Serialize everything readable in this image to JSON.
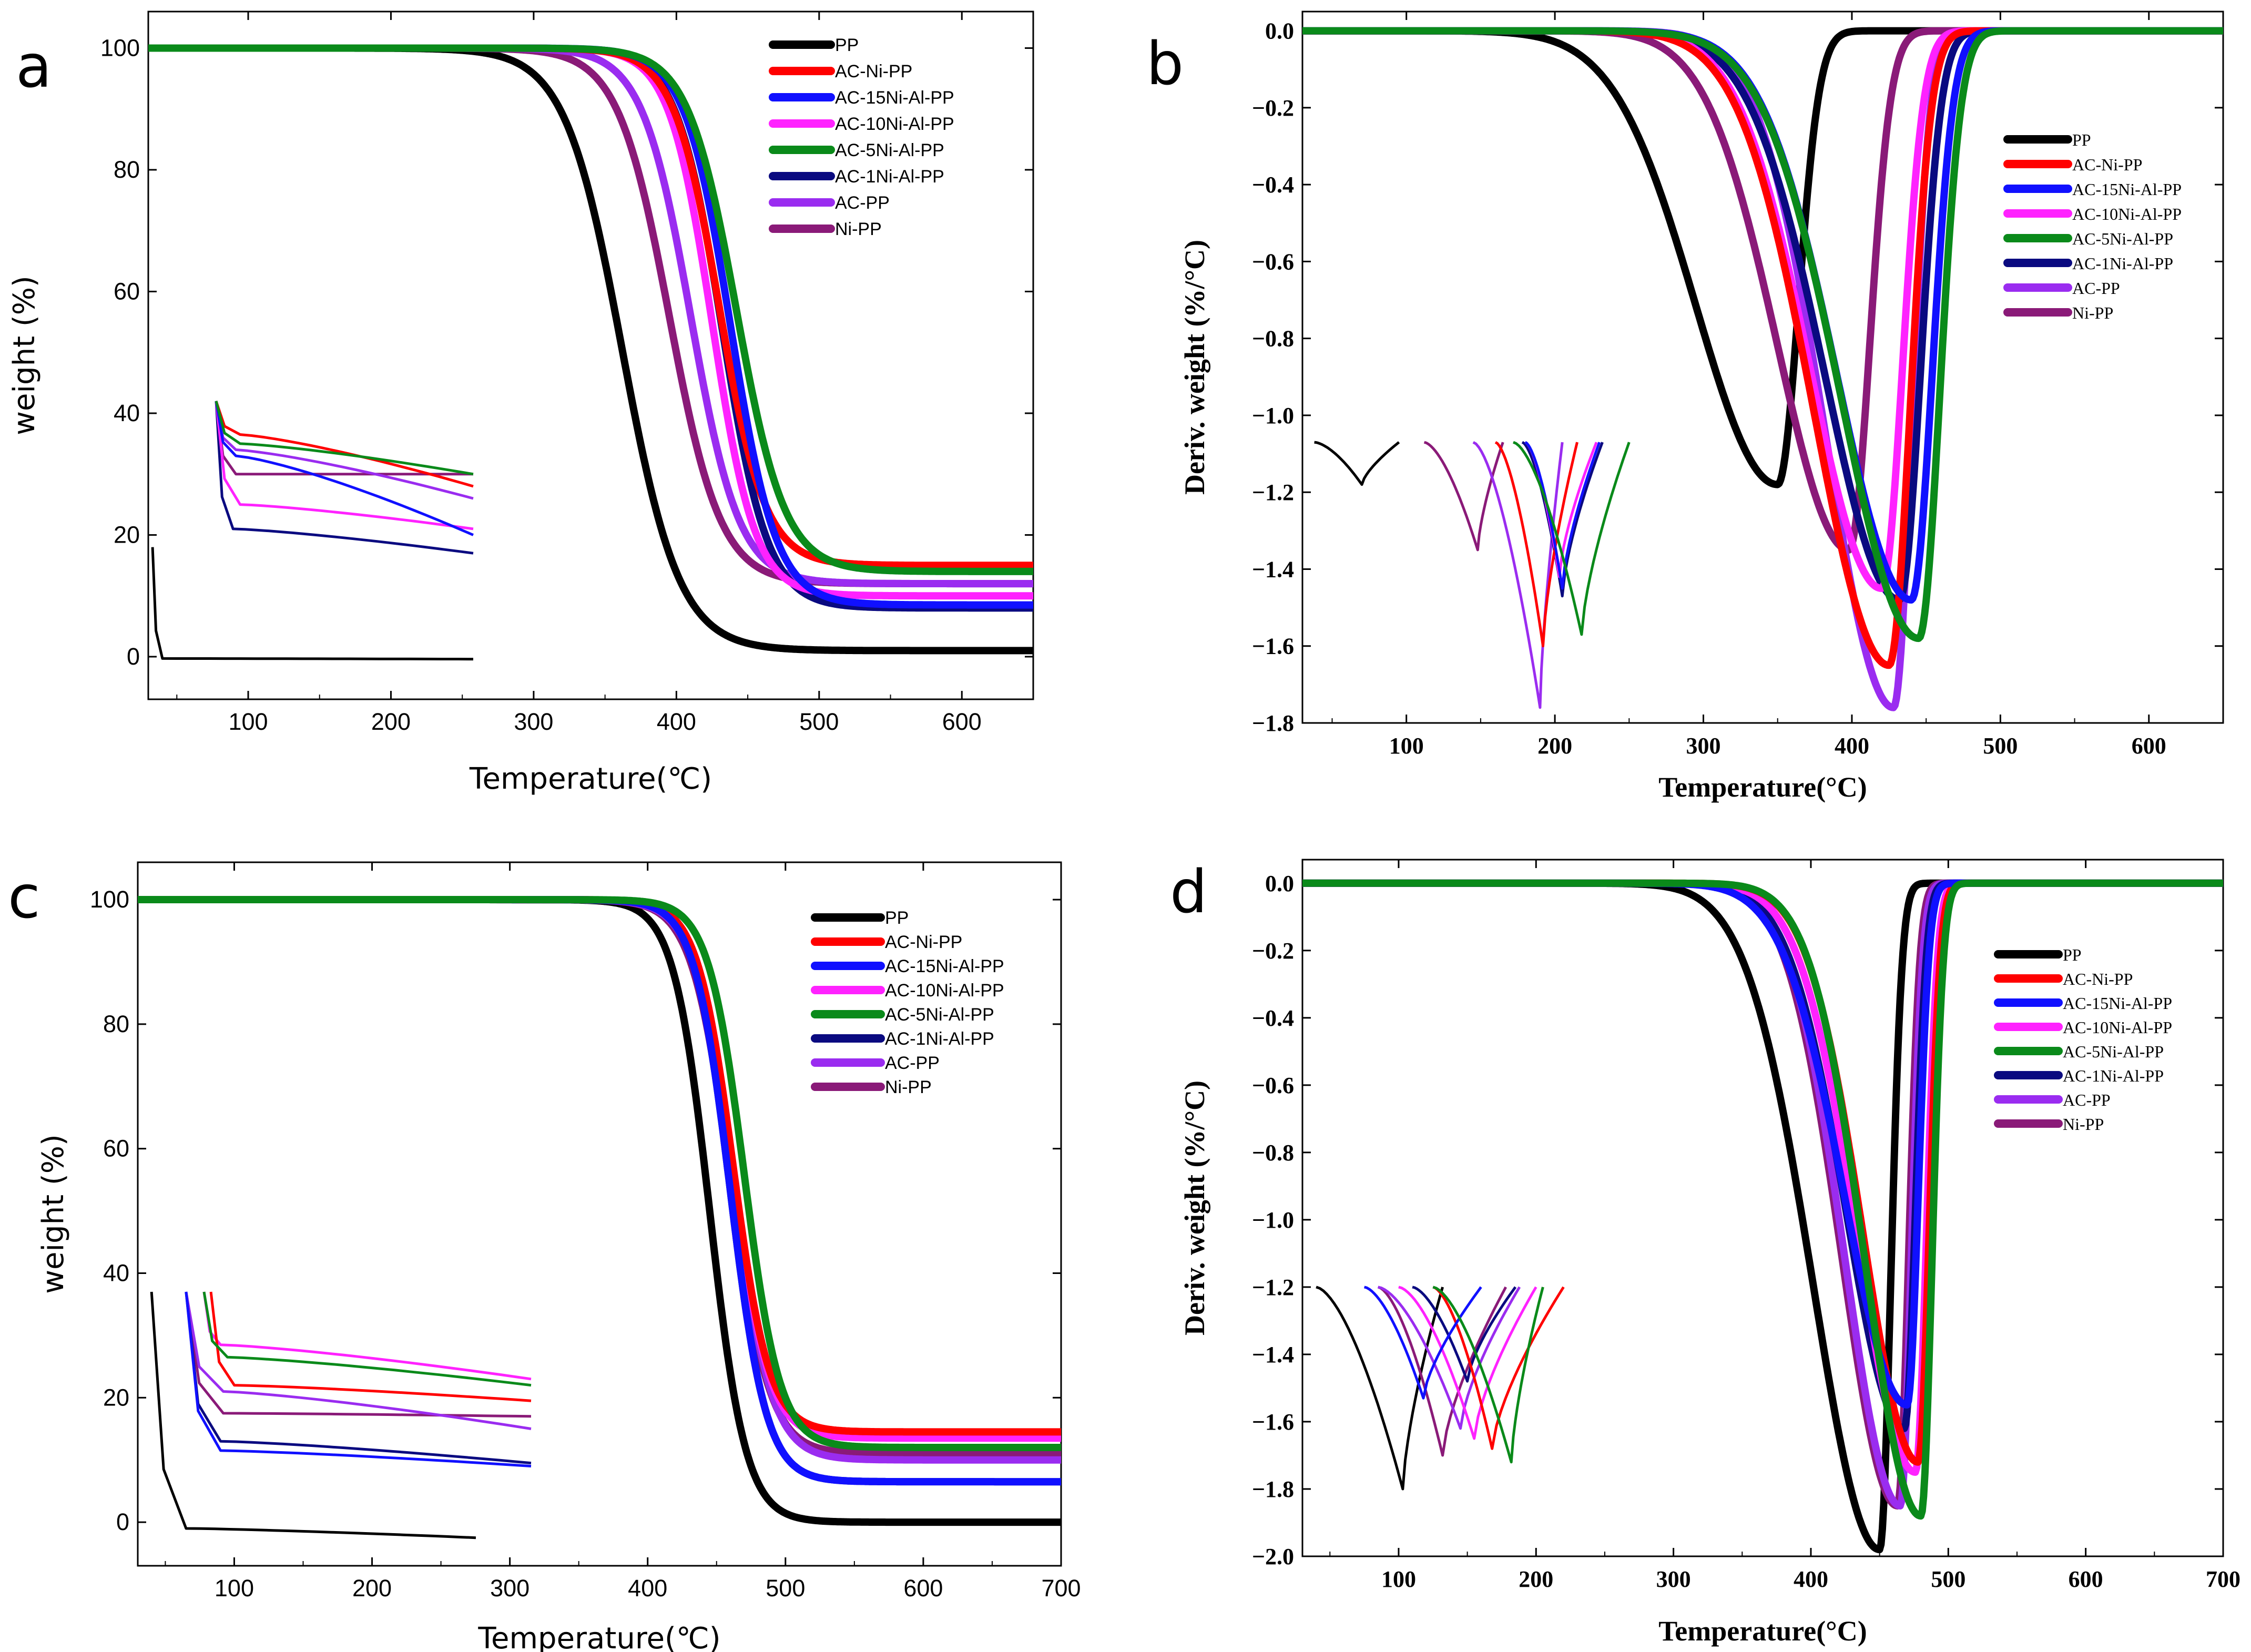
{
  "figure": {
    "panels": [
      "a",
      "b",
      "c",
      "d"
    ]
  },
  "series_colors": {
    "PP": "#000000",
    "AC-Ni-PP": "#ff0000",
    "AC-15Ni-Al-PP": "#1010ff",
    "AC-10Ni-Al-PP": "#ff22ff",
    "AC-5Ni-Al-PP": "#0a8a1a",
    "AC-1Ni-Al-PP": "#0a0a80",
    "AC-PP": "#9a2cf0",
    "Ni-PP": "#8a1a78"
  },
  "chart_data": [
    {
      "panel": "a",
      "type": "line",
      "xlabel": "Temperature(℃)",
      "ylabel": "weight (%)",
      "xlim": [
        30,
        650
      ],
      "ylim": [
        -7,
        106
      ],
      "xticks": [
        100,
        200,
        300,
        400,
        500,
        600
      ],
      "yticks": [
        0,
        20,
        40,
        60,
        80,
        100
      ],
      "legend_position": "top-right",
      "series": [
        {
          "name": "PP",
          "start": 100,
          "mid": 362,
          "width": 20,
          "residue": 1.0
        },
        {
          "name": "AC-Ni-PP",
          "start": 100,
          "mid": 430,
          "width": 16,
          "residue": 15.0
        },
        {
          "name": "AC-15Ni-Al-PP",
          "start": 100,
          "mid": 438,
          "width": 16,
          "residue": 8.5
        },
        {
          "name": "AC-10Ni-Al-PP",
          "start": 100,
          "mid": 425,
          "width": 15,
          "residue": 10.0
        },
        {
          "name": "AC-5Ni-Al-PP",
          "start": 100,
          "mid": 442,
          "width": 17,
          "residue": 14.0
        },
        {
          "name": "AC-1Ni-Al-PP",
          "start": 100,
          "mid": 432,
          "width": 16,
          "residue": 8.0
        },
        {
          "name": "AC-PP",
          "start": 100,
          "mid": 410,
          "width": 17,
          "residue": 12.0
        },
        {
          "name": "Ni-PP",
          "start": 100,
          "mid": 395,
          "width": 18,
          "residue": 12.0
        }
      ],
      "inset": {
        "x_range": [
          30,
          260
        ],
        "curves": [
          {
            "name": "PP",
            "x0": 33,
            "y0": 18,
            "drop_to": -0.3,
            "drop_x": 40,
            "end_y": -0.4
          },
          {
            "name": "AC-Ni-PP",
            "x0": 78,
            "y0": 42,
            "drop_to": 36.5,
            "drop_x": 95,
            "end_y": 28
          },
          {
            "name": "AC-15Ni-Al-PP",
            "x0": 78,
            "y0": 42,
            "drop_to": 33,
            "drop_x": 92,
            "end_y": 20
          },
          {
            "name": "AC-10Ni-Al-PP",
            "x0": 78,
            "y0": 42,
            "drop_to": 25,
            "drop_x": 95,
            "end_y": 21
          },
          {
            "name": "AC-5Ni-Al-PP",
            "x0": 78,
            "y0": 42,
            "drop_to": 35,
            "drop_x": 95,
            "end_y": 30
          },
          {
            "name": "AC-1Ni-Al-PP",
            "x0": 78,
            "y0": 42,
            "drop_to": 21,
            "drop_x": 90,
            "end_y": 17
          },
          {
            "name": "AC-PP",
            "x0": 78,
            "y0": 42,
            "drop_to": 34,
            "drop_x": 92,
            "end_y": 26
          },
          {
            "name": "Ni-PP",
            "x0": 78,
            "y0": 42,
            "drop_to": 30,
            "drop_x": 92,
            "end_y": 30
          }
        ]
      }
    },
    {
      "panel": "b",
      "type": "line",
      "xlabel": "Temperature(°C)",
      "ylabel": "Deriv. weight (%/°C)",
      "xlim": [
        30,
        650
      ],
      "ylim": [
        -1.8,
        0.05
      ],
      "xticks": [
        100,
        200,
        300,
        400,
        500,
        600
      ],
      "yticks": [
        0.0,
        -0.2,
        -0.4,
        -0.6,
        -0.8,
        -1.0,
        -1.2,
        -1.4,
        -1.6,
        -1.8
      ],
      "legend_position": "right",
      "series": [
        {
          "name": "PP",
          "peak_x": 350,
          "peak_y": -1.18,
          "sigma_left": 55,
          "sigma_right": 14
        },
        {
          "name": "AC-Ni-PP",
          "peak_x": 425,
          "peak_y": -1.65,
          "sigma_left": 50,
          "sigma_right": 14
        },
        {
          "name": "AC-15Ni-Al-PP",
          "peak_x": 440,
          "peak_y": -1.48,
          "sigma_left": 50,
          "sigma_right": 14
        },
        {
          "name": "AC-10Ni-Al-PP",
          "peak_x": 420,
          "peak_y": -1.45,
          "sigma_left": 48,
          "sigma_right": 14
        },
        {
          "name": "AC-5Ni-Al-PP",
          "peak_x": 445,
          "peak_y": -1.58,
          "sigma_left": 52,
          "sigma_right": 14
        },
        {
          "name": "AC-1Ni-Al-PP",
          "peak_x": 432,
          "peak_y": -1.48,
          "sigma_left": 50,
          "sigma_right": 14
        },
        {
          "name": "AC-PP",
          "peak_x": 428,
          "peak_y": -1.76,
          "sigma_left": 45,
          "sigma_right": 12
        },
        {
          "name": "Ni-PP",
          "peak_x": 398,
          "peak_y": -1.35,
          "sigma_left": 48,
          "sigma_right": 14
        }
      ],
      "inset": {
        "curves": [
          {
            "name": "PP",
            "x_left": 38,
            "x_peak": 70,
            "x_right": 95,
            "y_peak": -1.18,
            "y_top": -1.07
          },
          {
            "name": "AC-Ni-PP",
            "x_left": 160,
            "x_peak": 192,
            "x_right": 215,
            "y_peak": -1.6,
            "y_top": -1.07
          },
          {
            "name": "AC-15Ni-Al-PP",
            "x_left": 180,
            "x_peak": 205,
            "x_right": 230,
            "y_peak": -1.45,
            "y_top": -1.07
          },
          {
            "name": "AC-10Ni-Al-PP",
            "x_left": 180,
            "x_peak": 203,
            "x_right": 228,
            "y_peak": -1.42,
            "y_top": -1.07
          },
          {
            "name": "AC-5Ni-Al-PP",
            "x_left": 172,
            "x_peak": 218,
            "x_right": 250,
            "y_peak": -1.57,
            "y_top": -1.07
          },
          {
            "name": "AC-1Ni-Al-PP",
            "x_left": 178,
            "x_peak": 205,
            "x_right": 232,
            "y_peak": -1.47,
            "y_top": -1.07
          },
          {
            "name": "AC-PP",
            "x_left": 145,
            "x_peak": 190,
            "x_right": 205,
            "y_peak": -1.76,
            "y_top": -1.07
          },
          {
            "name": "Ni-PP",
            "x_left": 112,
            "x_peak": 148,
            "x_right": 165,
            "y_peak": -1.35,
            "y_top": -1.07
          }
        ]
      }
    },
    {
      "panel": "c",
      "type": "line",
      "xlabel": "Temperature(℃)",
      "ylabel": "weight (%)",
      "xlim": [
        30,
        700
      ],
      "ylim": [
        -7,
        106
      ],
      "xticks": [
        100,
        200,
        300,
        400,
        500,
        600,
        700
      ],
      "yticks": [
        0,
        20,
        40,
        60,
        80,
        100
      ],
      "legend_position": "top-right",
      "series": [
        {
          "name": "PP",
          "start": 100,
          "mid": 445,
          "width": 13,
          "residue": 0.0
        },
        {
          "name": "AC-Ni-PP",
          "start": 100,
          "mid": 462,
          "width": 13,
          "residue": 14.5
        },
        {
          "name": "AC-15Ni-Al-PP",
          "start": 100,
          "mid": 460,
          "width": 13,
          "residue": 6.5
        },
        {
          "name": "AC-10Ni-Al-PP",
          "start": 100,
          "mid": 462,
          "width": 13,
          "residue": 13.5
        },
        {
          "name": "AC-5Ni-Al-PP",
          "start": 100,
          "mid": 470,
          "width": 13,
          "residue": 12.0
        },
        {
          "name": "AC-1Ni-Al-PP",
          "start": 100,
          "mid": 460,
          "width": 13,
          "residue": 6.5
        },
        {
          "name": "AC-PP",
          "start": 100,
          "mid": 462,
          "width": 14,
          "residue": 10.0
        },
        {
          "name": "Ni-PP",
          "start": 100,
          "mid": 460,
          "width": 14,
          "residue": 11.0
        }
      ],
      "inset": {
        "x_range": [
          30,
          315
        ],
        "curves": [
          {
            "name": "PP",
            "x0": 40,
            "y0": 37,
            "drop_to": -1,
            "drop_x": 65,
            "end_y": -2.5,
            "end_x": 275
          },
          {
            "name": "AC-Ni-PP",
            "x0": 83,
            "y0": 37,
            "drop_to": 22,
            "drop_x": 100,
            "end_y": 19.5
          },
          {
            "name": "AC-15Ni-Al-PP",
            "x0": 65,
            "y0": 37,
            "drop_to": 11.5,
            "drop_x": 90,
            "end_y": 9
          },
          {
            "name": "AC-10Ni-Al-PP",
            "x0": 78,
            "y0": 37,
            "drop_to": 28.5,
            "drop_x": 90,
            "end_y": 23
          },
          {
            "name": "AC-5Ni-Al-PP",
            "x0": 78,
            "y0": 37,
            "drop_to": 26.5,
            "drop_x": 95,
            "end_y": 22
          },
          {
            "name": "AC-1Ni-Al-PP",
            "x0": 65,
            "y0": 37,
            "drop_to": 13,
            "drop_x": 90,
            "end_y": 9.5
          },
          {
            "name": "AC-PP",
            "x0": 65,
            "y0": 37,
            "drop_to": 21,
            "drop_x": 92,
            "end_y": 15
          },
          {
            "name": "Ni-PP",
            "x0": 65,
            "y0": 37,
            "drop_to": 17.5,
            "drop_x": 92,
            "end_y": 17
          }
        ]
      }
    },
    {
      "panel": "d",
      "type": "line",
      "xlabel": "Temperature(°C)",
      "ylabel": "Deriv. weight (%/°C)",
      "xlim": [
        30,
        700
      ],
      "ylim": [
        -2.0,
        0.07
      ],
      "xticks": [
        100,
        200,
        300,
        400,
        500,
        600,
        700
      ],
      "yticks": [
        0.0,
        -0.2,
        -0.4,
        -0.6,
        -0.8,
        -1.0,
        -1.2,
        -1.4,
        -1.6,
        -1.8,
        -2.0
      ],
      "legend_position": "right",
      "series": [
        {
          "name": "PP",
          "peak_x": 450,
          "peak_y": -1.98,
          "sigma_left": 48,
          "sigma_right": 8
        },
        {
          "name": "AC-Ni-PP",
          "peak_x": 478,
          "peak_y": -1.72,
          "sigma_left": 40,
          "sigma_right": 8
        },
        {
          "name": "AC-15Ni-Al-PP",
          "peak_x": 470,
          "peak_y": -1.55,
          "sigma_left": 45,
          "sigma_right": 8
        },
        {
          "name": "AC-10Ni-Al-PP",
          "peak_x": 476,
          "peak_y": -1.75,
          "sigma_left": 42,
          "sigma_right": 8
        },
        {
          "name": "AC-5Ni-Al-PP",
          "peak_x": 480,
          "peak_y": -1.88,
          "sigma_left": 40,
          "sigma_right": 8
        },
        {
          "name": "AC-1Ni-Al-PP",
          "peak_x": 468,
          "peak_y": -1.62,
          "sigma_left": 42,
          "sigma_right": 8
        },
        {
          "name": "AC-PP",
          "peak_x": 465,
          "peak_y": -1.85,
          "sigma_left": 40,
          "sigma_right": 8
        },
        {
          "name": "Ni-PP",
          "peak_x": 463,
          "peak_y": -1.85,
          "sigma_left": 40,
          "sigma_right": 8
        }
      ],
      "inset": {
        "curves": [
          {
            "name": "PP",
            "x_left": 40,
            "x_peak": 103,
            "x_right": 132,
            "y_peak": -1.8,
            "y_top": -1.2
          },
          {
            "name": "AC-Ni-PP",
            "x_left": 125,
            "x_peak": 168,
            "x_right": 220,
            "y_peak": -1.68,
            "y_top": -1.2
          },
          {
            "name": "AC-15Ni-Al-PP",
            "x_left": 75,
            "x_peak": 118,
            "x_right": 160,
            "y_peak": -1.53,
            "y_top": -1.2
          },
          {
            "name": "AC-10Ni-Al-PP",
            "x_left": 100,
            "x_peak": 155,
            "x_right": 200,
            "y_peak": -1.65,
            "y_top": -1.2
          },
          {
            "name": "AC-5Ni-Al-PP",
            "x_left": 125,
            "x_peak": 182,
            "x_right": 205,
            "y_peak": -1.72,
            "y_top": -1.2
          },
          {
            "name": "AC-1Ni-Al-PP",
            "x_left": 110,
            "x_peak": 150,
            "x_right": 185,
            "y_peak": -1.48,
            "y_top": -1.2
          },
          {
            "name": "AC-PP",
            "x_left": 85,
            "x_peak": 145,
            "x_right": 188,
            "y_peak": -1.62,
            "y_top": -1.2
          },
          {
            "name": "Ni-PP",
            "x_left": 85,
            "x_peak": 132,
            "x_right": 178,
            "y_peak": -1.7,
            "y_top": -1.2
          }
        ]
      }
    }
  ]
}
